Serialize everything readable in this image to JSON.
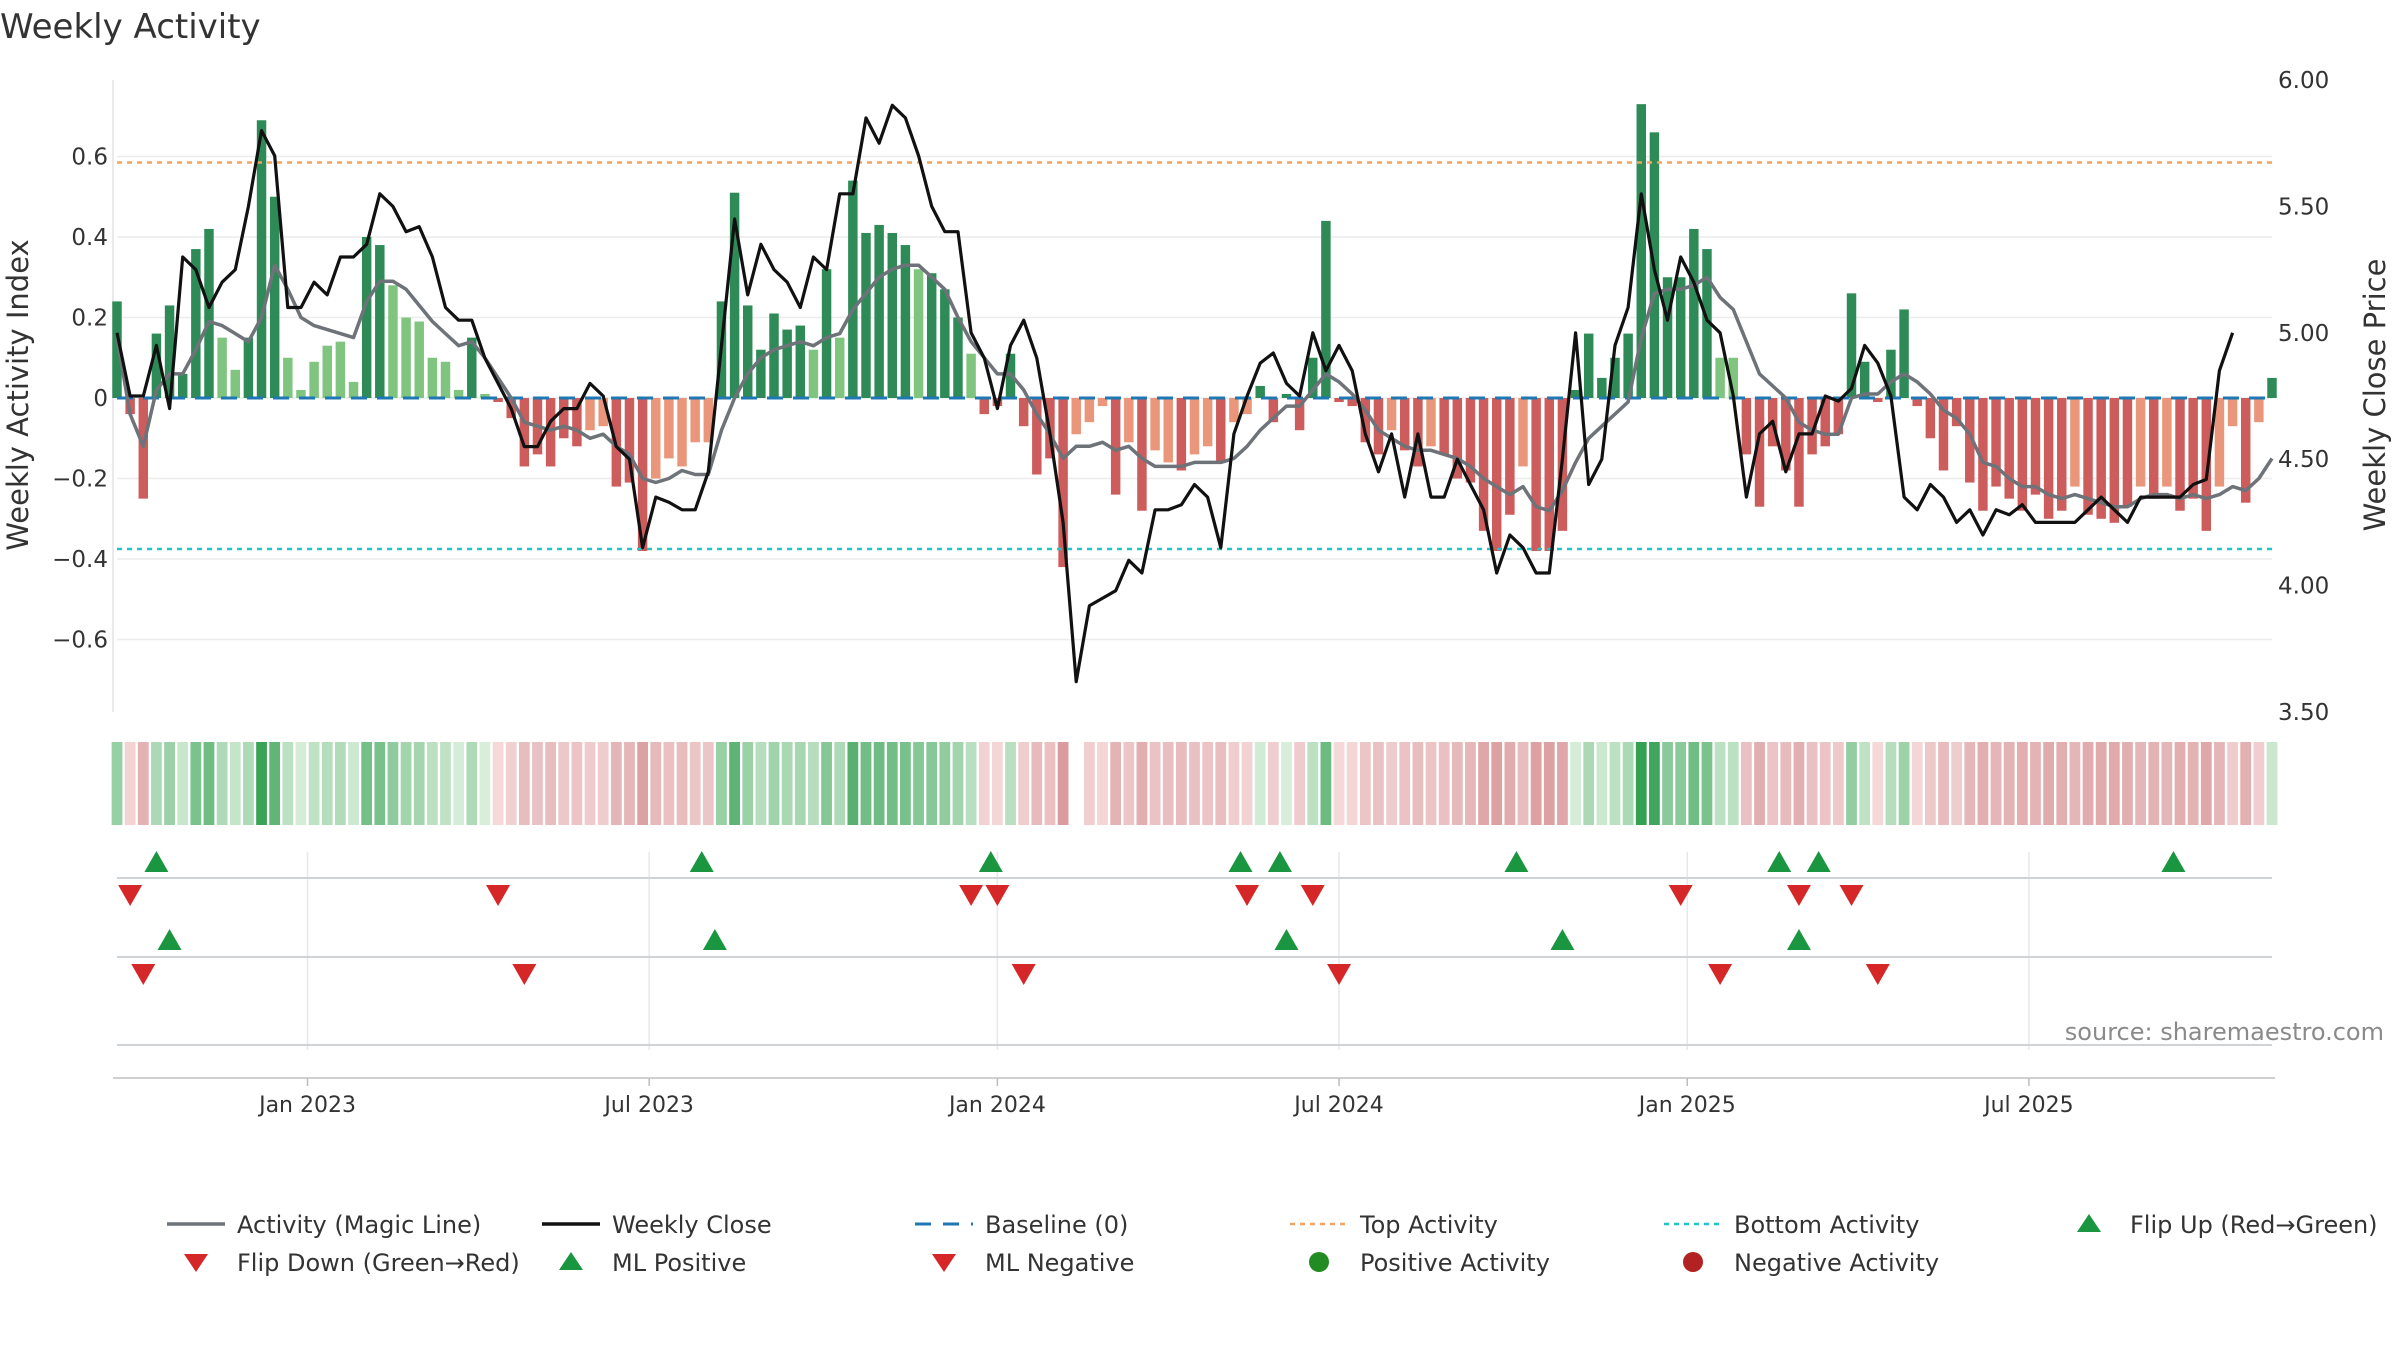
{
  "colors": {
    "pos_dark": "#2e8b57",
    "pos_light": "#7fc47f",
    "neg_dark": "#cd5c5c",
    "neg_light": "#e9967a",
    "magic": "#6d7378",
    "close": "#111111",
    "baseline": "#1f77b4",
    "top": "#f4a460",
    "bottom": "#20c5c5",
    "flip_up": "#1a9641",
    "flip_down": "#d62728",
    "pos_dot": "#228b22",
    "neg_dot": "#b22222"
  },
  "chart_data": {
    "type": "bar+line",
    "title": "Weekly Activity",
    "ylabel": "Weekly Activity Index",
    "y2label": "Weekly Close Price",
    "source": "source: sharemaestro.com",
    "ylim": [
      -0.78,
      0.79
    ],
    "y2lim": [
      3.5,
      6.0
    ],
    "yticks": [
      0.6,
      0.4,
      0.2,
      0,
      -0.2,
      -0.4,
      -0.6
    ],
    "yticklabels": [
      "0.6",
      "0.4",
      "0.2",
      "0",
      "−0.2",
      "−0.4",
      "−0.6"
    ],
    "y2ticks": [
      6.0,
      5.5,
      5.0,
      4.5,
      4.0,
      3.5
    ],
    "y2ticklabels": [
      "6.00",
      "5.50",
      "5.00",
      "4.50",
      "4.00",
      "3.50"
    ],
    "xticks": [
      {
        "week": 14.5,
        "label": "Jan 2023"
      },
      {
        "week": 40.5,
        "label": "Jul 2023"
      },
      {
        "week": 67,
        "label": "Jan 2024"
      },
      {
        "week": 93,
        "label": "Jul 2024"
      },
      {
        "week": 119.5,
        "label": "Jan 2025"
      },
      {
        "week": 145.5,
        "label": "Jul 2025"
      }
    ],
    "baseline": 0,
    "top_activity": 0.585,
    "bottom_activity": -0.375,
    "activity": [
      0.24,
      -0.04,
      -0.25,
      0.16,
      0.23,
      0.06,
      0.37,
      0.42,
      0.15,
      0.07,
      0.15,
      0.69,
      0.5,
      0.1,
      0.02,
      0.09,
      0.13,
      0.14,
      0.04,
      0.4,
      0.38,
      0.28,
      0.2,
      0.19,
      0.1,
      0.09,
      0.02,
      0.15,
      0.01,
      -0.01,
      -0.05,
      -0.17,
      -0.14,
      -0.17,
      -0.1,
      -0.12,
      -0.08,
      -0.07,
      -0.22,
      -0.21,
      -0.38,
      -0.2,
      -0.15,
      -0.17,
      -0.11,
      -0.11,
      0.24,
      0.51,
      0.23,
      0.12,
      0.21,
      0.17,
      0.18,
      0.12,
      0.32,
      0.15,
      0.54,
      0.41,
      0.43,
      0.41,
      0.38,
      0.32,
      0.31,
      0.27,
      0.2,
      0.11,
      -0.04,
      -0.02,
      0.11,
      -0.07,
      -0.19,
      -0.15,
      -0.42,
      -0.09,
      -0.06,
      -0.02,
      -0.24,
      -0.11,
      -0.28,
      -0.13,
      -0.16,
      -0.18,
      -0.14,
      -0.12,
      -0.16,
      -0.06,
      -0.04,
      0.03,
      -0.06,
      0.01,
      -0.08,
      0.1,
      0.44,
      -0.01,
      -0.02,
      -0.11,
      -0.14,
      -0.08,
      -0.13,
      -0.17,
      -0.12,
      -0.14,
      -0.2,
      -0.21,
      -0.33,
      -0.38,
      -0.29,
      -0.17,
      -0.38,
      -0.38,
      -0.33,
      0.02,
      0.16,
      0.05,
      0.1,
      0.16,
      0.73,
      0.66,
      0.3,
      0.3,
      0.42,
      0.37,
      0.1,
      0.1,
      -0.14,
      -0.27,
      -0.12,
      -0.18,
      -0.27,
      -0.14,
      -0.12,
      -0.09,
      0.26,
      0.09,
      -0.01,
      0.12,
      0.22,
      -0.02,
      -0.1,
      -0.18,
      -0.07,
      -0.21,
      -0.28,
      -0.22,
      -0.25,
      -0.28,
      -0.24,
      -0.3,
      -0.28,
      -0.22,
      -0.29,
      -0.3,
      -0.31,
      -0.27,
      -0.22,
      -0.25,
      -0.22,
      -0.28,
      -0.25,
      -0.33,
      -0.22,
      -0.07,
      -0.26,
      -0.06,
      0.05
    ],
    "magic_line": [
      0.15,
      -0.04,
      -0.12,
      0.02,
      0.06,
      0.06,
      0.12,
      0.19,
      0.18,
      0.16,
      0.14,
      0.2,
      0.33,
      0.27,
      0.2,
      0.18,
      0.17,
      0.16,
      0.15,
      0.24,
      0.29,
      0.29,
      0.27,
      0.23,
      0.19,
      0.16,
      0.13,
      0.14,
      0.1,
      0.05,
      0.0,
      -0.06,
      -0.07,
      -0.08,
      -0.07,
      -0.08,
      -0.1,
      -0.09,
      -0.12,
      -0.14,
      -0.2,
      -0.21,
      -0.2,
      -0.18,
      -0.19,
      -0.19,
      -0.08,
      0.0,
      0.06,
      0.1,
      0.12,
      0.13,
      0.14,
      0.13,
      0.15,
      0.16,
      0.22,
      0.26,
      0.3,
      0.32,
      0.33,
      0.33,
      0.3,
      0.27,
      0.2,
      0.14,
      0.1,
      0.06,
      0.06,
      0.02,
      -0.04,
      -0.09,
      -0.15,
      -0.12,
      -0.12,
      -0.11,
      -0.13,
      -0.12,
      -0.15,
      -0.17,
      -0.17,
      -0.17,
      -0.16,
      -0.16,
      -0.16,
      -0.15,
      -0.12,
      -0.08,
      -0.05,
      -0.02,
      -0.02,
      0.02,
      0.06,
      0.04,
      0.01,
      -0.03,
      -0.08,
      -0.1,
      -0.12,
      -0.13,
      -0.13,
      -0.14,
      -0.15,
      -0.17,
      -0.2,
      -0.22,
      -0.24,
      -0.22,
      -0.27,
      -0.28,
      -0.23,
      -0.16,
      -0.1,
      -0.07,
      -0.04,
      -0.01,
      0.15,
      0.26,
      0.27,
      0.27,
      0.28,
      0.3,
      0.25,
      0.22,
      0.14,
      0.06,
      0.03,
      0.0,
      -0.06,
      -0.08,
      -0.09,
      -0.09,
      0.0,
      0.01,
      0.01,
      0.04,
      0.06,
      0.04,
      0.01,
      -0.03,
      -0.05,
      -0.09,
      -0.16,
      -0.17,
      -0.2,
      -0.22,
      -0.22,
      -0.24,
      -0.25,
      -0.24,
      -0.25,
      -0.26,
      -0.27,
      -0.27,
      -0.25,
      -0.24,
      -0.24,
      -0.25,
      -0.24,
      -0.25,
      -0.24,
      -0.22,
      -0.23,
      -0.2,
      -0.15
    ],
    "weekly_close": [
      5.0,
      4.75,
      4.75,
      4.95,
      4.7,
      5.3,
      5.25,
      5.1,
      5.2,
      5.25,
      5.5,
      5.8,
      5.7,
      5.1,
      5.1,
      5.2,
      5.15,
      5.3,
      5.3,
      5.35,
      5.55,
      5.5,
      5.4,
      5.42,
      5.3,
      5.1,
      5.05,
      5.05,
      4.9,
      4.8,
      4.7,
      4.55,
      4.55,
      4.65,
      4.7,
      4.7,
      4.8,
      4.75,
      4.55,
      4.5,
      4.15,
      4.35,
      4.33,
      4.3,
      4.3,
      4.45,
      4.95,
      5.45,
      5.15,
      5.35,
      5.25,
      5.2,
      5.1,
      5.3,
      5.25,
      5.55,
      5.55,
      5.85,
      5.75,
      5.9,
      5.85,
      5.7,
      5.5,
      5.4,
      5.4,
      5.0,
      4.9,
      4.7,
      4.95,
      5.05,
      4.9,
      4.6,
      4.25,
      3.62,
      3.92,
      3.95,
      3.98,
      4.1,
      4.05,
      4.3,
      4.3,
      4.32,
      4.4,
      4.35,
      4.15,
      4.6,
      4.75,
      4.88,
      4.92,
      4.8,
      4.75,
      5.0,
      4.85,
      4.95,
      4.85,
      4.6,
      4.45,
      4.6,
      4.35,
      4.6,
      4.35,
      4.35,
      4.5,
      4.4,
      4.3,
      4.05,
      4.2,
      4.15,
      4.05,
      4.05,
      4.5,
      5.0,
      4.4,
      4.5,
      4.95,
      5.1,
      5.55,
      5.25,
      5.05,
      5.3,
      5.2,
      5.05,
      5.0,
      4.75,
      4.35,
      4.6,
      4.65,
      4.45,
      4.6,
      4.6,
      4.75,
      4.73,
      4.78,
      4.95,
      4.88,
      4.75,
      4.35,
      4.3,
      4.4,
      4.35,
      4.25,
      4.3,
      4.2,
      4.3,
      4.28,
      4.32,
      4.25,
      4.25,
      4.25,
      4.25,
      4.3,
      4.35,
      4.3,
      4.25,
      4.35,
      4.35,
      4.35,
      4.35,
      4.4,
      4.42,
      4.85,
      5.0
    ],
    "heat_band": [
      0.24,
      -0.04,
      -0.25,
      0.16,
      0.23,
      0.06,
      0.37,
      0.42,
      0.15,
      0.07,
      0.15,
      0.69,
      0.5,
      0.1,
      0.02,
      0.09,
      0.13,
      0.14,
      0.04,
      0.4,
      0.38,
      0.28,
      0.2,
      0.19,
      0.1,
      0.09,
      0.02,
      0.15,
      0.01,
      -0.01,
      -0.05,
      -0.17,
      -0.14,
      -0.17,
      -0.1,
      -0.12,
      -0.08,
      -0.07,
      -0.22,
      -0.21,
      -0.38,
      -0.2,
      -0.15,
      -0.17,
      -0.11,
      -0.11,
      0.24,
      0.51,
      0.23,
      0.12,
      0.21,
      0.17,
      0.18,
      0.12,
      0.32,
      0.15,
      0.54,
      0.41,
      0.43,
      0.41,
      0.38,
      0.32,
      0.31,
      0.27,
      0.2,
      0.11,
      -0.04,
      -0.02,
      0.11,
      -0.07,
      -0.19,
      -0.15,
      -0.42,
      null,
      -0.06,
      -0.02,
      -0.24,
      -0.11,
      -0.28,
      -0.13,
      -0.16,
      -0.18,
      -0.14,
      -0.12,
      -0.16,
      -0.06,
      -0.04,
      0.03,
      -0.06,
      0.01,
      -0.08,
      0.1,
      0.44,
      -0.01,
      -0.02,
      -0.11,
      -0.14,
      -0.08,
      -0.13,
      -0.17,
      -0.12,
      -0.14,
      -0.2,
      -0.21,
      -0.33,
      -0.38,
      -0.29,
      -0.17,
      -0.38,
      -0.38,
      -0.33,
      0.02,
      0.16,
      0.05,
      0.1,
      0.16,
      0.73,
      0.66,
      0.3,
      0.3,
      0.42,
      0.37,
      0.1,
      0.1,
      -0.14,
      -0.27,
      -0.12,
      -0.18,
      -0.27,
      -0.14,
      -0.12,
      -0.09,
      0.26,
      0.09,
      -0.01,
      0.12,
      0.22,
      -0.02,
      -0.1,
      -0.18,
      -0.07,
      -0.21,
      -0.28,
      -0.22,
      -0.25,
      -0.28,
      -0.24,
      -0.3,
      -0.28,
      -0.22,
      -0.29,
      -0.3,
      -0.31,
      -0.27,
      -0.22,
      -0.25,
      -0.22,
      -0.28,
      -0.25,
      -0.33,
      -0.22,
      -0.07,
      -0.26,
      -0.06,
      0.05
    ],
    "flip_up": [
      3,
      44.5,
      66.5,
      85.5,
      88.5,
      106.5,
      126.5,
      129.5,
      156.5
    ],
    "flip_down": [
      1,
      29,
      65,
      67,
      86,
      91,
      119,
      128,
      132
    ],
    "ml_positive": [
      4,
      45.5,
      89,
      110,
      128
    ],
    "ml_negative": [
      2,
      31,
      69,
      93,
      122,
      134
    ],
    "legend": [
      {
        "label": "Activity (Magic Line)",
        "kind": "magic"
      },
      {
        "label": "Weekly Close",
        "kind": "close"
      },
      {
        "label": "Baseline (0)",
        "kind": "baseline"
      },
      {
        "label": "Top Activity",
        "kind": "top"
      },
      {
        "label": "Bottom Activity",
        "kind": "bottom"
      },
      {
        "label": "Flip Up (Red→Green)",
        "kind": "flip_up"
      },
      {
        "label": "Flip Down (Green→Red)",
        "kind": "flip_down"
      },
      {
        "label": "ML Positive",
        "kind": "ml_pos"
      },
      {
        "label": "ML Negative",
        "kind": "ml_neg"
      },
      {
        "label": "Positive Activity",
        "kind": "pos_dot"
      },
      {
        "label": "Negative Activity",
        "kind": "neg_dot"
      }
    ]
  }
}
